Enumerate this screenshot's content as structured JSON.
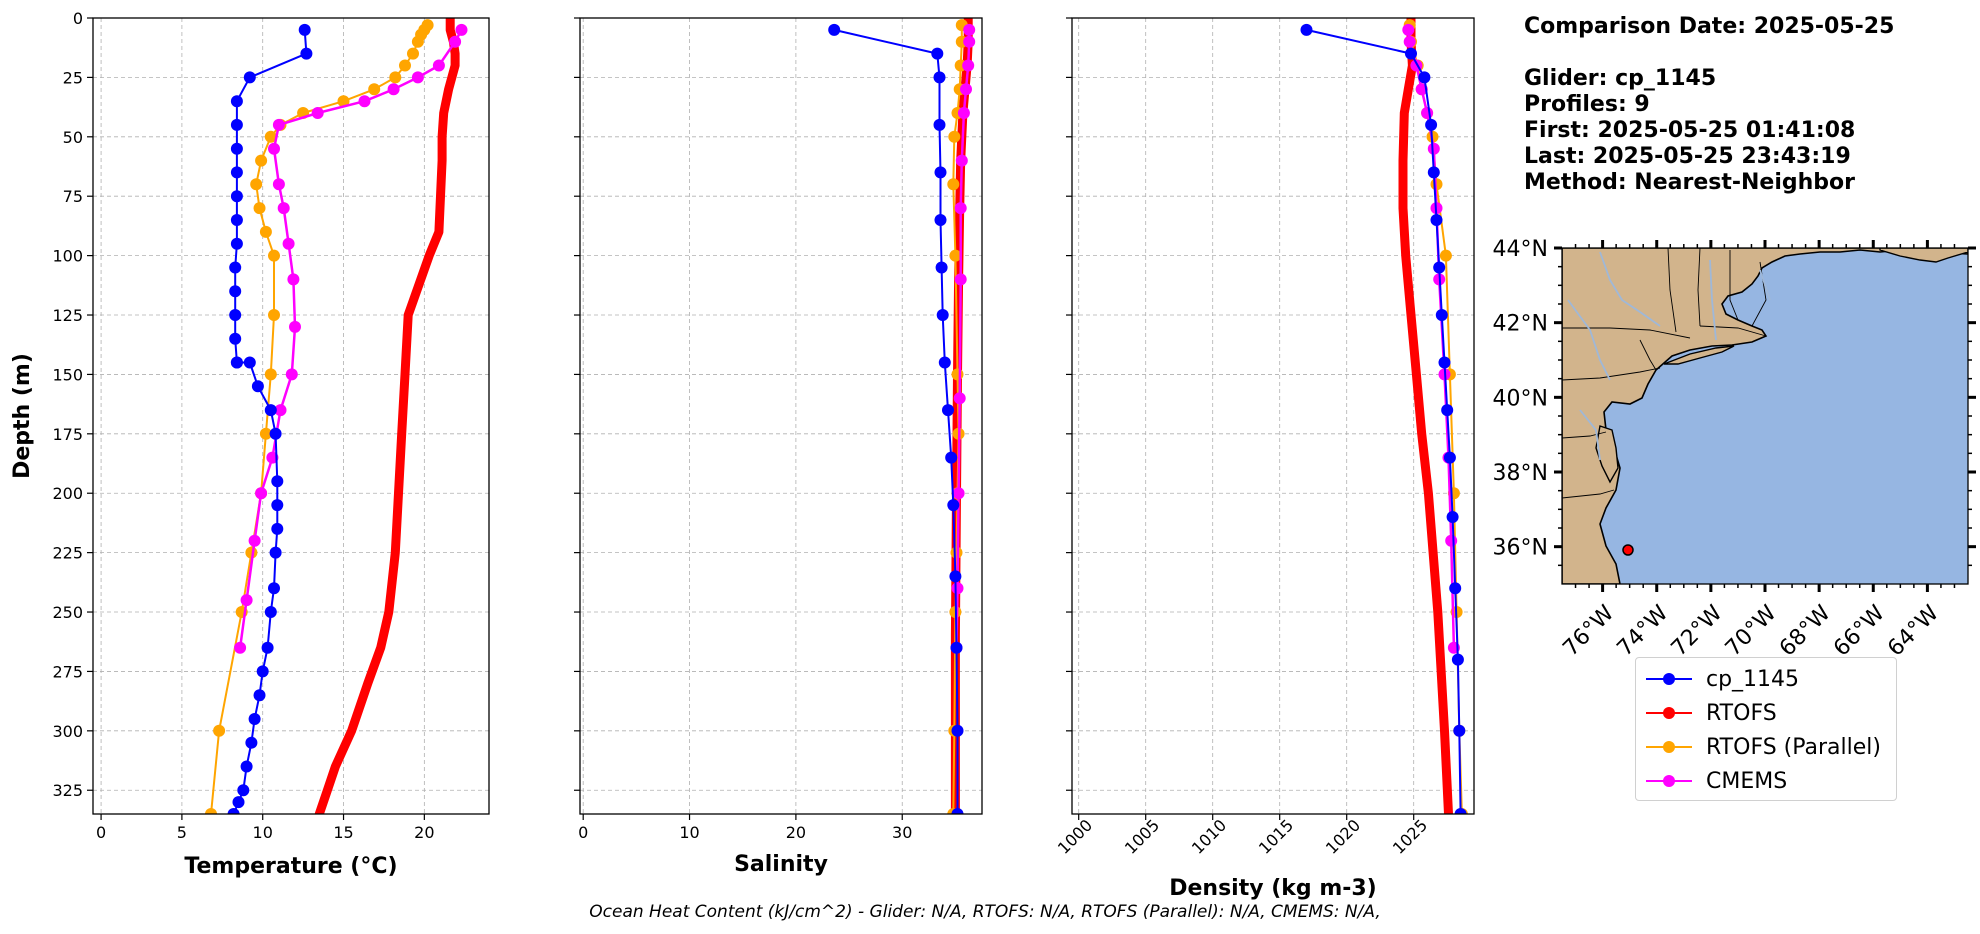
{
  "info": {
    "comparison_date": "Comparison Date: 2025-05-25",
    "glider": "Glider: cp_1145",
    "profiles": "Profiles: 9",
    "first": "First: 2025-05-25 01:41:08",
    "last": "Last: 2025-05-25 23:43:19",
    "method": "Method: Nearest-Neighbor"
  },
  "legend": [
    {
      "label": "cp_1145",
      "color": "#0000ff"
    },
    {
      "label": "RTOFS",
      "color": "#ff0000"
    },
    {
      "label": "RTOFS (Parallel)",
      "color": "#ffa500"
    },
    {
      "label": "CMEMS",
      "color": "#ff00ff"
    }
  ],
  "footer": "Ocean Heat Content (kJ/cm^2) - Glider: N/A,  RTOFS: N/A,  RTOFS (Parallel): N/A,  CMEMS: N/A,",
  "chart_data": [
    {
      "type": "line",
      "xlabel": "Temperature (°C)",
      "ylabel": "Depth (m)",
      "xlim": [
        -0.5,
        24
      ],
      "ylim": [
        335,
        0
      ],
      "y_inverted": true,
      "grid": true,
      "xticks": [
        0,
        5,
        10,
        15,
        20
      ],
      "yticks": [
        0,
        25,
        50,
        75,
        100,
        125,
        150,
        175,
        200,
        225,
        250,
        275,
        300,
        325
      ],
      "series": [
        {
          "name": "RTOFS",
          "color": "#ff0000",
          "x": [
            21.6,
            21.6,
            21.8,
            21.9,
            21.9,
            21.5,
            21.2,
            21.1,
            21.1,
            21.0,
            20.9,
            20.3,
            19.0,
            18.8,
            18.6,
            18.4,
            18.2,
            17.8,
            17.3,
            16.5,
            15.5,
            14.5,
            14.0,
            13.5
          ],
          "y": [
            0,
            5,
            10,
            15,
            20,
            30,
            40,
            50,
            60,
            75,
            90,
            100,
            125,
            150,
            175,
            200,
            225,
            250,
            265,
            280,
            300,
            315,
            325,
            335
          ]
        },
        {
          "name": "RTOFS (Parallel)",
          "color": "#ffa500",
          "x": [
            20.2,
            20.0,
            19.8,
            19.6,
            19.3,
            18.8,
            18.2,
            16.9,
            15.0,
            12.5,
            11.1,
            10.5,
            9.9,
            9.6,
            9.8,
            10.2,
            10.7,
            10.7,
            10.5,
            10.2,
            9.9,
            9.3,
            8.7,
            7.3,
            6.8
          ],
          "y": [
            3,
            5,
            7,
            10,
            15,
            20,
            25,
            30,
            35,
            40,
            45,
            50,
            60,
            70,
            80,
            90,
            100,
            125,
            150,
            175,
            200,
            225,
            250,
            300,
            335
          ]
        },
        {
          "name": "CMEMS",
          "color": "#ff00ff",
          "x": [
            22.3,
            21.9,
            20.9,
            19.6,
            18.1,
            16.3,
            13.4,
            11.0,
            10.7,
            11.0,
            11.3,
            11.6,
            11.9,
            12.0,
            11.8,
            11.1,
            10.6,
            9.9,
            9.5,
            9.0,
            8.6
          ],
          "y": [
            5,
            10,
            20,
            25,
            30,
            35,
            40,
            45,
            55,
            70,
            80,
            95,
            110,
            130,
            150,
            165,
            185,
            200,
            220,
            245,
            265
          ]
        },
        {
          "name": "cp_1145",
          "color": "#0000ff",
          "x": [
            12.6,
            12.7,
            9.2,
            8.4,
            8.4,
            8.4,
            8.4,
            8.4,
            8.4,
            8.4,
            8.3,
            8.3,
            8.3,
            8.3,
            8.4,
            8.4,
            9.2,
            9.7,
            10.5,
            10.8,
            10.9,
            10.9,
            10.9,
            10.8,
            10.7,
            10.5,
            10.3,
            10.0,
            9.8,
            9.5,
            9.3,
            9.0,
            8.8,
            8.5,
            8.2
          ],
          "y": [
            5,
            15,
            25,
            35,
            45,
            55,
            65,
            75,
            85,
            95,
            105,
            115,
            125,
            135,
            145,
            145,
            145,
            155,
            165,
            175,
            195,
            205,
            215,
            225,
            240,
            250,
            265,
            275,
            285,
            295,
            305,
            315,
            325,
            330,
            335
          ]
        }
      ]
    },
    {
      "type": "line",
      "xlabel": "Salinity",
      "xlim": [
        -0.3,
        37.5
      ],
      "ylim": [
        335,
        0
      ],
      "y_inverted": true,
      "grid": true,
      "xticks": [
        0,
        10,
        20,
        30
      ],
      "series": [
        {
          "name": "RTOFS",
          "color": "#ff0000",
          "x": [
            36.2,
            36.2,
            36.1,
            35.9,
            35.7,
            35.5,
            35.4,
            35.3,
            35.2,
            35.1,
            35.0,
            35.0
          ],
          "y": [
            0,
            10,
            20,
            30,
            40,
            60,
            80,
            110,
            150,
            200,
            260,
            335
          ]
        },
        {
          "name": "RTOFS (Parallel)",
          "color": "#ffa500",
          "x": [
            35.6,
            35.6,
            35.5,
            35.4,
            35.2,
            34.9,
            34.8,
            35.0,
            35.2,
            35.3,
            35.2,
            35.1,
            35.0,
            34.9,
            34.8
          ],
          "y": [
            3,
            10,
            20,
            30,
            40,
            50,
            70,
            100,
            150,
            175,
            200,
            225,
            250,
            300,
            335
          ]
        },
        {
          "name": "CMEMS",
          "color": "#ff00ff",
          "x": [
            36.3,
            36.3,
            36.2,
            36.0,
            35.8,
            35.6,
            35.5,
            35.5,
            35.4,
            35.3,
            35.2,
            35.1
          ],
          "y": [
            5,
            10,
            20,
            30,
            40,
            60,
            80,
            110,
            160,
            200,
            240,
            265
          ]
        },
        {
          "name": "cp_1145",
          "color": "#0000ff",
          "x": [
            23.6,
            33.3,
            33.5,
            33.5,
            33.6,
            33.6,
            33.7,
            33.8,
            34.0,
            34.3,
            34.6,
            34.8,
            35.0,
            35.1,
            35.2,
            35.2
          ],
          "y": [
            5,
            15,
            25,
            45,
            65,
            85,
            105,
            125,
            145,
            165,
            185,
            205,
            235,
            265,
            300,
            335
          ]
        }
      ]
    },
    {
      "type": "line",
      "xlabel": "Density (kg m-3)",
      "xlim": [
        999.5,
        1029.5
      ],
      "ylim": [
        335,
        0
      ],
      "y_inverted": true,
      "grid": true,
      "xticks": [
        1000,
        1005,
        1010,
        1015,
        1020,
        1025
      ],
      "series": [
        {
          "name": "RTOFS",
          "color": "#ff0000",
          "x": [
            1024.8,
            1024.8,
            1024.9,
            1024.6,
            1024.3,
            1024.2,
            1024.2,
            1024.4,
            1024.8,
            1025.2,
            1025.6,
            1026.1,
            1026.8,
            1027.3,
            1027.6
          ],
          "y": [
            0,
            10,
            20,
            30,
            40,
            60,
            80,
            100,
            125,
            150,
            175,
            200,
            250,
            300,
            335
          ]
        },
        {
          "name": "RTOFS (Parallel)",
          "color": "#ffa500",
          "x": [
            1024.7,
            1024.8,
            1025.3,
            1025.6,
            1026.0,
            1026.4,
            1026.7,
            1027.4,
            1027.7,
            1028.0,
            1028.2,
            1028.4,
            1028.6
          ],
          "y": [
            3,
            10,
            20,
            30,
            40,
            50,
            70,
            100,
            150,
            200,
            250,
            300,
            335
          ]
        },
        {
          "name": "CMEMS",
          "color": "#ff00ff",
          "x": [
            1024.6,
            1024.7,
            1025.2,
            1025.6,
            1026.0,
            1026.5,
            1026.7,
            1026.9,
            1027.3,
            1027.6,
            1027.8,
            1028.0
          ],
          "y": [
            5,
            10,
            20,
            30,
            40,
            55,
            80,
            110,
            150,
            185,
            220,
            265
          ]
        },
        {
          "name": "cp_1145",
          "color": "#0000ff",
          "x": [
            1017.0,
            1024.8,
            1025.8,
            1026.3,
            1026.5,
            1026.7,
            1026.9,
            1027.1,
            1027.3,
            1027.5,
            1027.7,
            1027.9,
            1028.1,
            1028.3,
            1028.4,
            1028.5
          ],
          "y": [
            5,
            15,
            25,
            45,
            65,
            85,
            105,
            125,
            145,
            165,
            185,
            210,
            240,
            270,
            300,
            335
          ]
        }
      ]
    },
    {
      "type": "map",
      "lat_ticks": [
        "44°N",
        "42°N",
        "40°N",
        "38°N",
        "36°N"
      ],
      "lon_ticks": [
        "76°W",
        "74°W",
        "72°W",
        "70°W",
        "68°W",
        "66°W",
        "64°W"
      ],
      "lon_range": [
        -77.5,
        -62.5
      ],
      "lat_range": [
        35,
        44
      ],
      "ocean_color": "#96b6e2",
      "land_color": "#d2b48c",
      "glider_location": {
        "lon": -75.2,
        "lat": 36.0
      }
    }
  ]
}
